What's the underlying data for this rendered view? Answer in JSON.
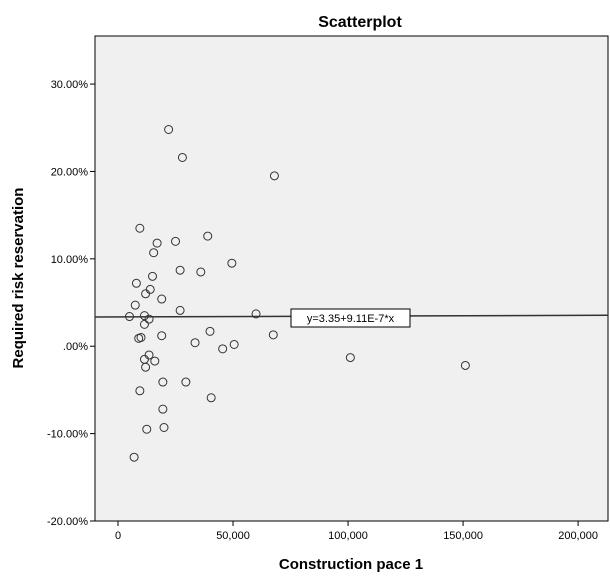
{
  "chart_data": {
    "type": "scatter",
    "title": "Scatterplot",
    "xlabel": "Construction pace 1",
    "ylabel": "Required risk reservation",
    "xlim": [
      -10000,
      213000
    ],
    "ylim": [
      -20,
      35.5
    ],
    "x_ticks": [
      0,
      50000,
      100000,
      150000,
      200000
    ],
    "x_tick_labels": [
      "0",
      "50,000",
      "100,000",
      "150,000",
      "200,000"
    ],
    "y_ticks": [
      -20,
      -10,
      0,
      10,
      20,
      30
    ],
    "y_tick_labels": [
      "-20.00%",
      "-10.00%",
      ".00%",
      "10.00%",
      "20.00%",
      "30.00%"
    ],
    "grid": false,
    "background_color": "#f0f0f0",
    "marker": "open-circle",
    "points": [
      {
        "x": 22000,
        "y": 24.8
      },
      {
        "x": 28000,
        "y": 21.6
      },
      {
        "x": 68000,
        "y": 19.5
      },
      {
        "x": 9500,
        "y": 13.5
      },
      {
        "x": 17000,
        "y": 11.8
      },
      {
        "x": 25000,
        "y": 12.0
      },
      {
        "x": 39000,
        "y": 12.6
      },
      {
        "x": 15500,
        "y": 10.7
      },
      {
        "x": 49500,
        "y": 9.5
      },
      {
        "x": 27000,
        "y": 8.7
      },
      {
        "x": 36000,
        "y": 8.5
      },
      {
        "x": 15000,
        "y": 8.0
      },
      {
        "x": 8000,
        "y": 7.2
      },
      {
        "x": 14000,
        "y": 6.5
      },
      {
        "x": 12000,
        "y": 6.0
      },
      {
        "x": 19000,
        "y": 5.4
      },
      {
        "x": 7500,
        "y": 4.7
      },
      {
        "x": 27000,
        "y": 4.1
      },
      {
        "x": 60000,
        "y": 3.7
      },
      {
        "x": 5000,
        "y": 3.4
      },
      {
        "x": 11500,
        "y": 3.5
      },
      {
        "x": 13500,
        "y": 3.1
      },
      {
        "x": 11500,
        "y": 2.5
      },
      {
        "x": 40000,
        "y": 1.7
      },
      {
        "x": 19000,
        "y": 1.2
      },
      {
        "x": 10000,
        "y": 1.0
      },
      {
        "x": 9000,
        "y": 0.9
      },
      {
        "x": 67500,
        "y": 1.3
      },
      {
        "x": 33500,
        "y": 0.4
      },
      {
        "x": 50500,
        "y": 0.2
      },
      {
        "x": 45500,
        "y": -0.3
      },
      {
        "x": 13500,
        "y": -1.0
      },
      {
        "x": 11500,
        "y": -1.5
      },
      {
        "x": 16000,
        "y": -1.7
      },
      {
        "x": 12000,
        "y": -2.4
      },
      {
        "x": 101000,
        "y": -1.3
      },
      {
        "x": 151000,
        "y": -2.2
      },
      {
        "x": 19500,
        "y": -4.1
      },
      {
        "x": 29500,
        "y": -4.1
      },
      {
        "x": 9500,
        "y": -5.1
      },
      {
        "x": 40500,
        "y": -5.9
      },
      {
        "x": 19500,
        "y": -7.2
      },
      {
        "x": 12500,
        "y": -9.5
      },
      {
        "x": 20000,
        "y": -9.3
      },
      {
        "x": 7000,
        "y": -12.7
      }
    ],
    "fit_line": {
      "label": "y=3.35+9.11E-7*x",
      "intercept": 3.35,
      "slope": 9.11e-07
    }
  }
}
